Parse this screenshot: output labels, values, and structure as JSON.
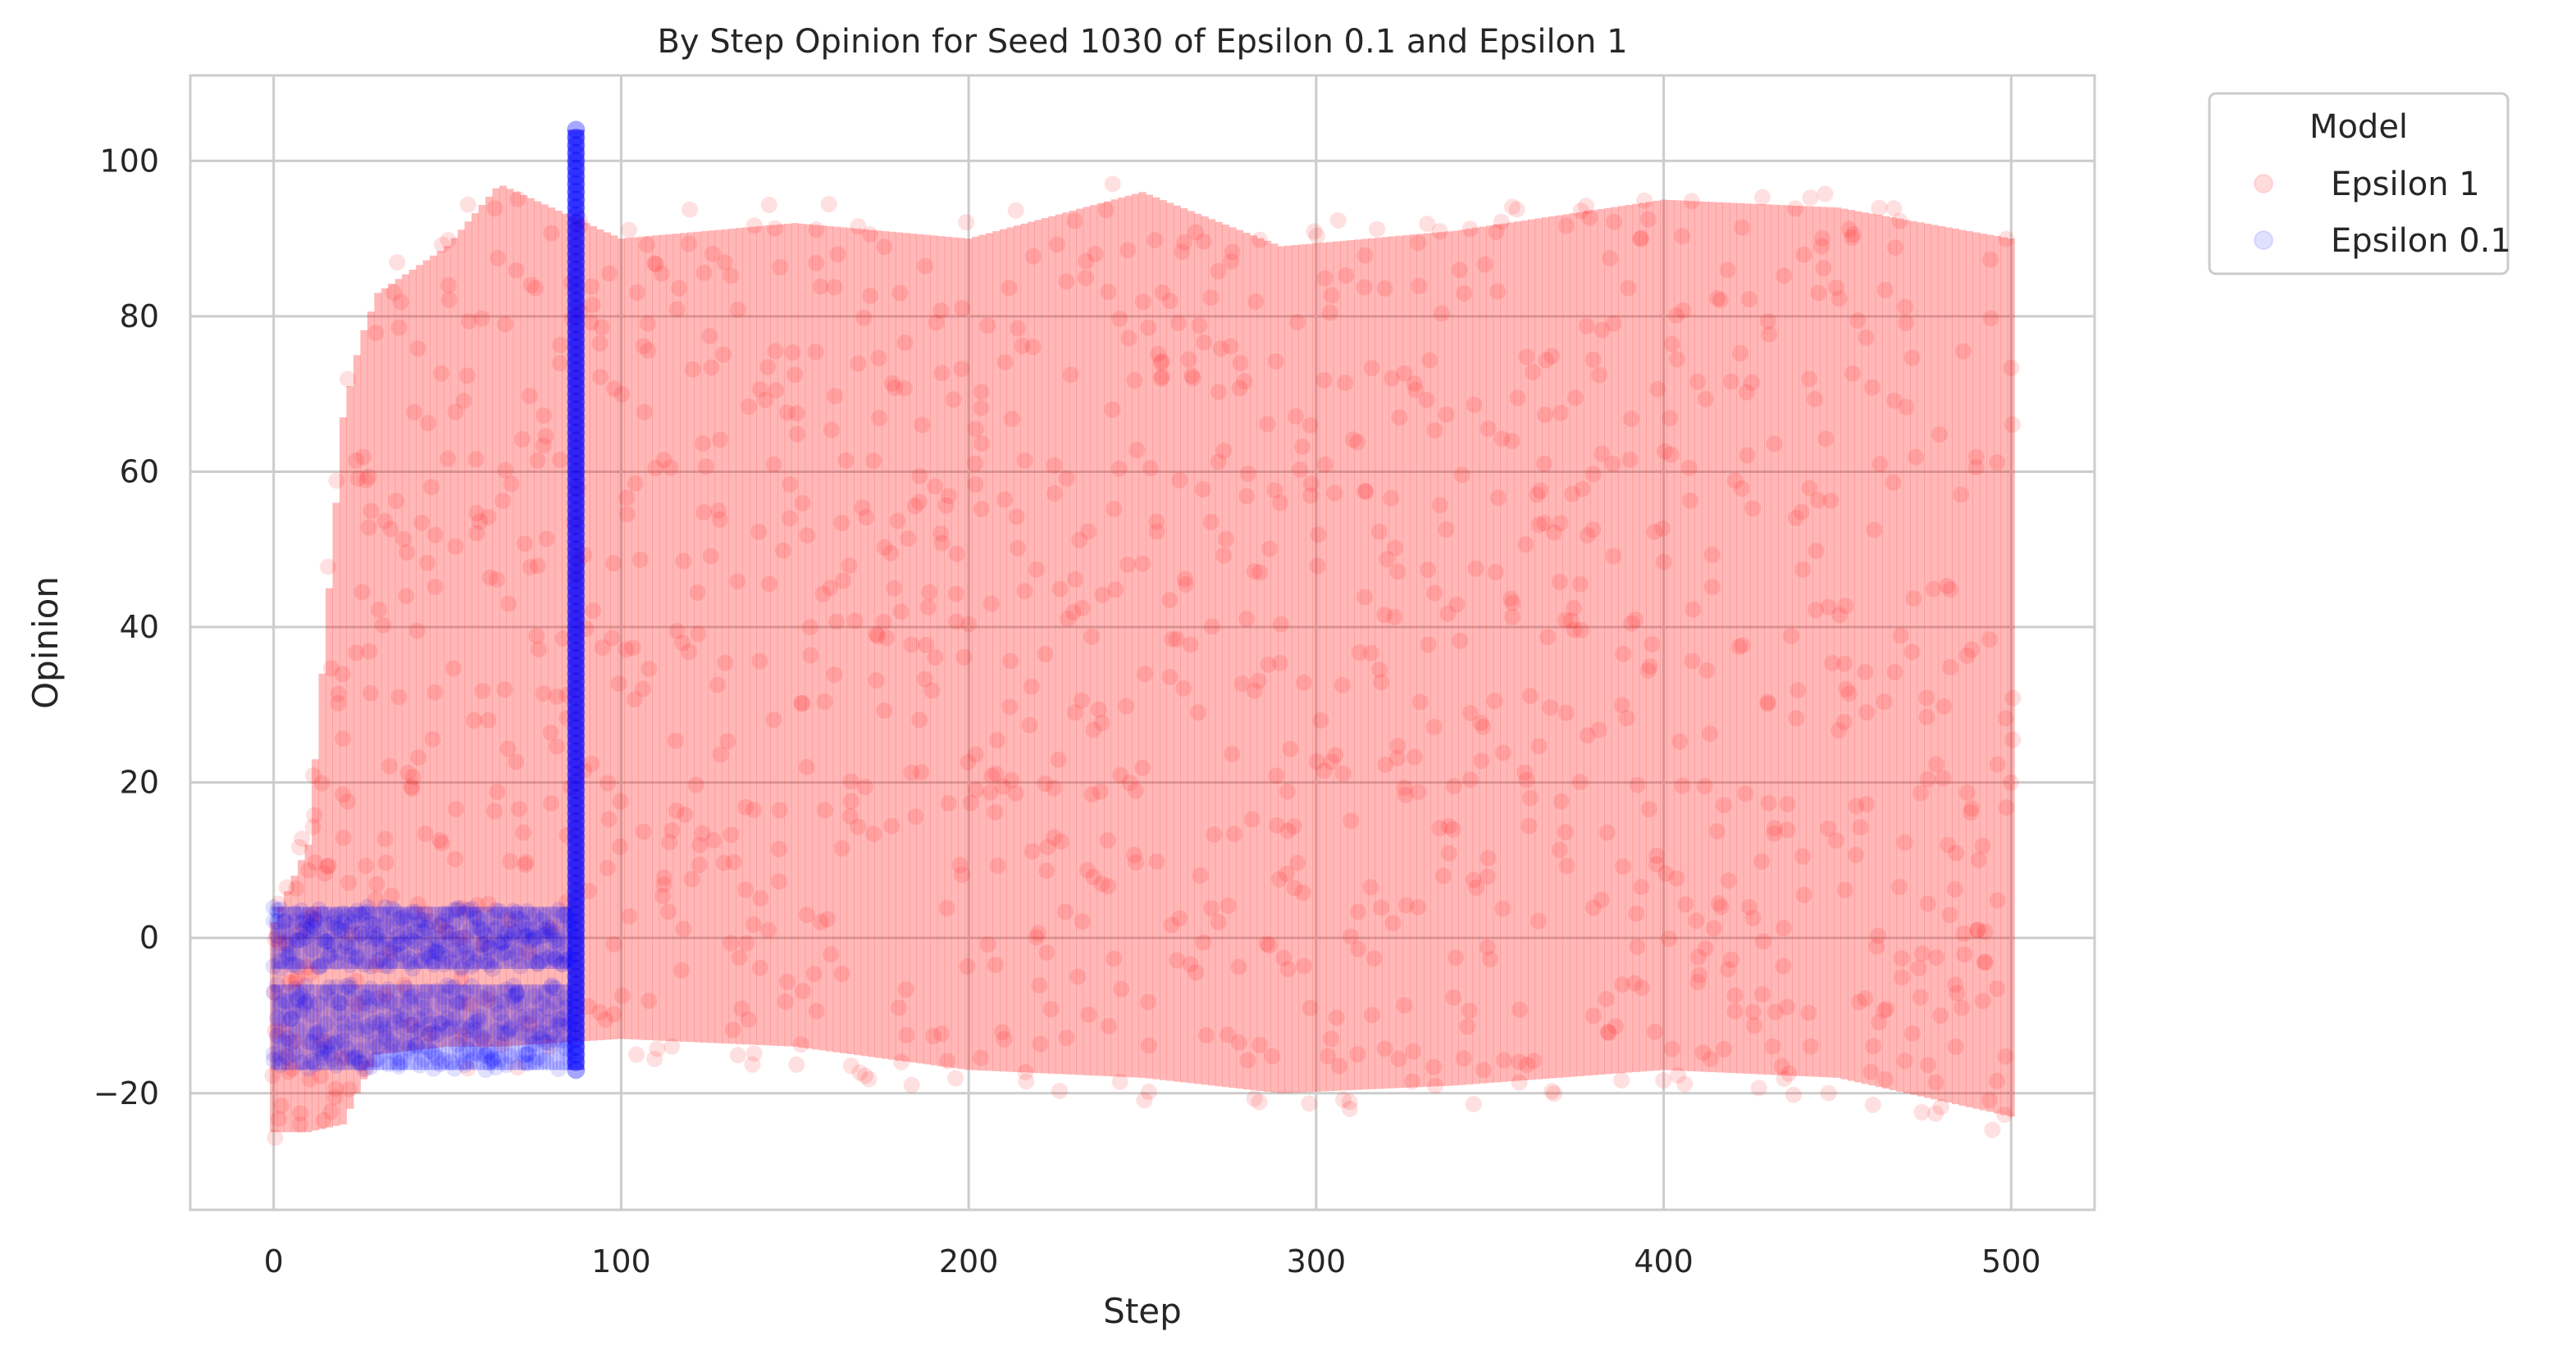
{
  "chart_data": {
    "type": "scatter",
    "title": "By Step Opinion for Seed 1030 of Epsilon 0.1 and Epsilon 1",
    "xlabel": "Step",
    "ylabel": "Opinion",
    "xlim": [
      -24,
      524
    ],
    "ylim": [
      -35,
      111
    ],
    "xticks": [
      0,
      100,
      200,
      300,
      400,
      500
    ],
    "yticks": [
      -20,
      0,
      20,
      40,
      60,
      80,
      100
    ],
    "grid": true,
    "legend": {
      "title": "Model",
      "placement": "outside-top-right"
    },
    "series": [
      {
        "name": "Epsilon 1",
        "color": "#ff0000",
        "alpha": 0.12,
        "step_range": [
          0,
          500
        ],
        "envelope": [
          {
            "x": 0,
            "min": -28,
            "max": 5
          },
          {
            "x": 10,
            "min": -28,
            "max": 15
          },
          {
            "x": 20,
            "min": -27,
            "max": 70
          },
          {
            "x": 25,
            "min": -22,
            "max": 80
          },
          {
            "x": 30,
            "min": -18,
            "max": 86
          },
          {
            "x": 50,
            "min": -17,
            "max": 92
          },
          {
            "x": 65,
            "min": -17,
            "max": 100
          },
          {
            "x": 100,
            "min": -16,
            "max": 93
          },
          {
            "x": 150,
            "min": -17,
            "max": 95
          },
          {
            "x": 200,
            "min": -20,
            "max": 93
          },
          {
            "x": 250,
            "min": -21,
            "max": 99
          },
          {
            "x": 290,
            "min": -23,
            "max": 92
          },
          {
            "x": 340,
            "min": -22,
            "max": 94
          },
          {
            "x": 400,
            "min": -20,
            "max": 98
          },
          {
            "x": 450,
            "min": -21,
            "max": 97
          },
          {
            "x": 500,
            "min": -26,
            "max": 93
          }
        ]
      },
      {
        "name": "Epsilon 0.1",
        "color": "#0000ff",
        "alpha": 0.12,
        "step_range": [
          0,
          88
        ],
        "clusters": [
          {
            "x_range": [
              0,
              85
            ],
            "min": -4,
            "max": 4
          },
          {
            "x_range": [
              0,
              85
            ],
            "min": -17,
            "max": -6
          }
        ],
        "final_spread": {
          "x": 87,
          "min": -17,
          "max": 104
        }
      }
    ]
  }
}
